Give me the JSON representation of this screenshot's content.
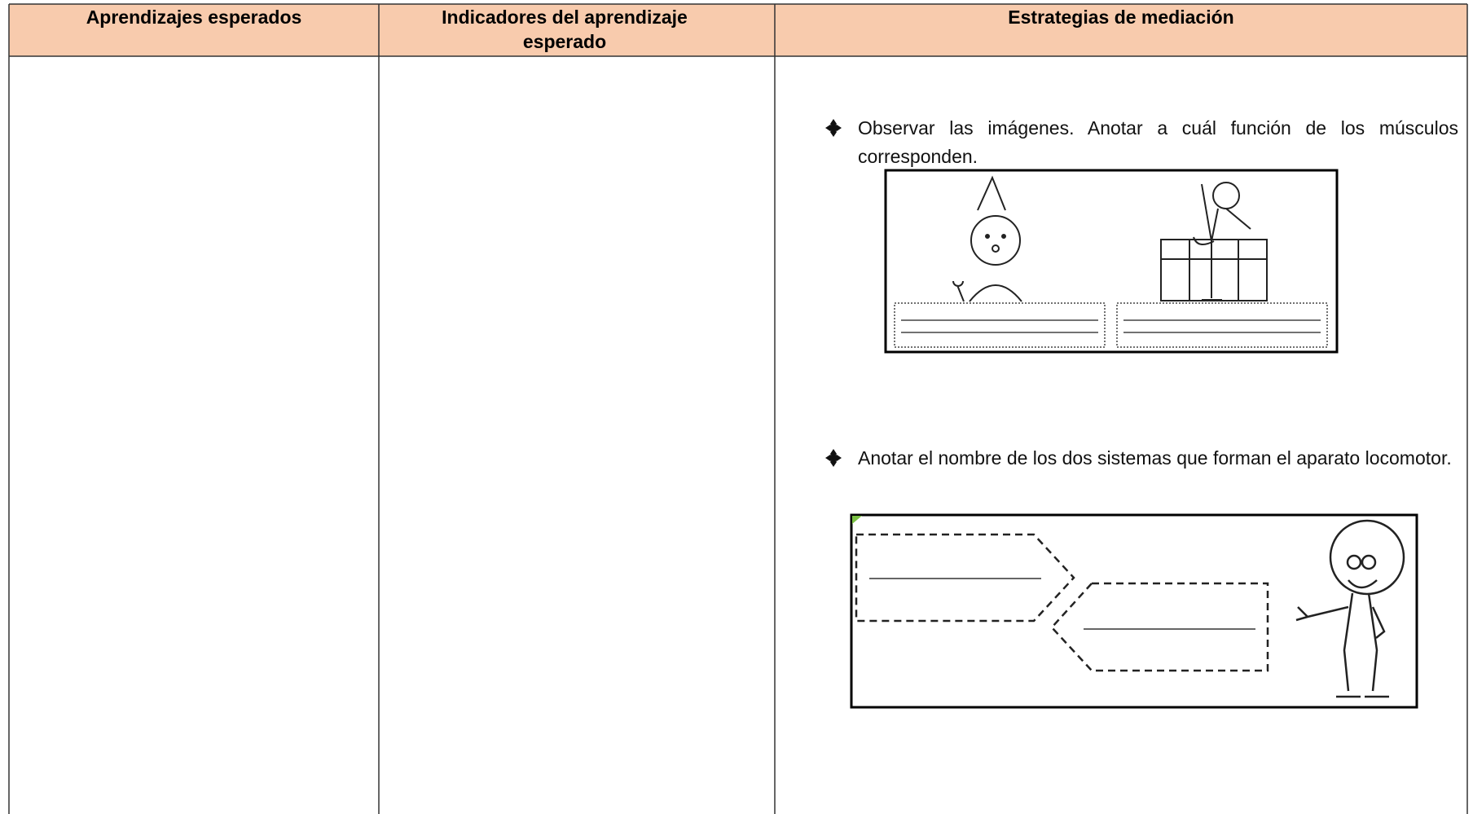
{
  "table": {
    "headers": [
      "Aprendizajes esperados",
      "Indicadores del aprendizaje esperado",
      "Estrategias de mediación"
    ],
    "activities": [
      "Observar las imágenes. Anotar a cuál función de los músculos corresponden.",
      "Anotar el nombre de los dos sistemas que forman el aparato locomotor."
    ]
  }
}
